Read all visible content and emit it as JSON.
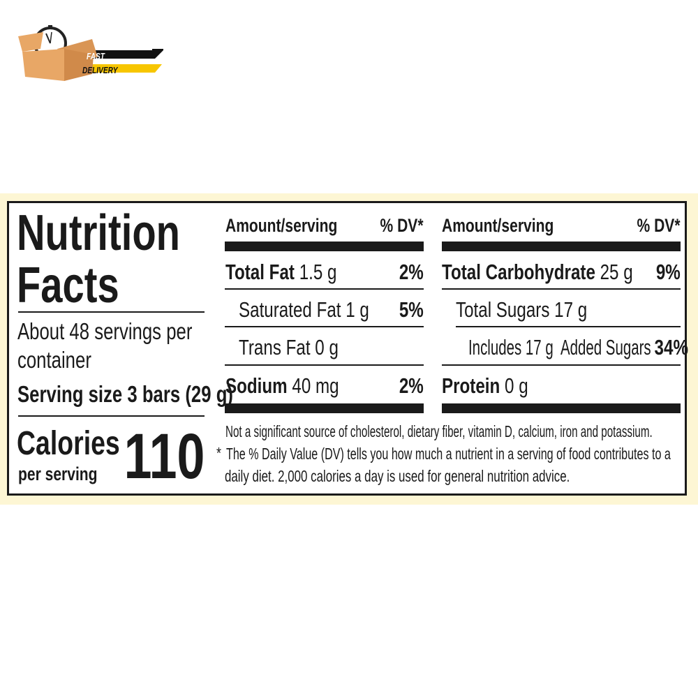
{
  "logo": {
    "line1": "FAST",
    "line2": "DELIVERY",
    "colors": {
      "box": "#e8a766",
      "black_band": "#111111",
      "yellow_band": "#f7c600"
    }
  },
  "label": {
    "title_line1": "Nutrition",
    "title_line2": "Facts",
    "servings_line1": "About 48 servings per",
    "servings_line2": "container",
    "serving_size": "Serving size 3 bars (29 g)",
    "calories_label": "Calories",
    "per_serving": "per serving",
    "calories_value": "110",
    "left_column": {
      "header_amount": "Amount/serving",
      "header_dv": "% DV*",
      "rows": [
        {
          "name": "Total Fat",
          "amount": "1.5 g",
          "dv": "2%"
        },
        {
          "name": "Saturated Fat",
          "amount": "1 g",
          "dv": "5%"
        },
        {
          "name": "Trans Fat",
          "amount": "0 g",
          "dv": ""
        },
        {
          "name": "Sodium",
          "amount": "40 mg",
          "dv": "2%"
        }
      ]
    },
    "right_column": {
      "header_amount": "Amount/serving",
      "header_dv": "% DV*",
      "rows": [
        {
          "name": "Total Carbohydrate",
          "amount": "25 g",
          "dv": "9%"
        },
        {
          "name": "Total Sugars",
          "amount": "17 g",
          "dv": ""
        },
        {
          "name": "Includes 17 g  Added Sugars",
          "amount": "",
          "dv": "34%"
        },
        {
          "name": "Protein",
          "amount": "0 g",
          "dv": ""
        }
      ]
    },
    "footnote_line1": "Not a significant source of cholesterol, dietary fiber, vitamin D, calcium, iron and potassium.",
    "footnote_star": "*",
    "footnote_line2": "The % Daily Value (DV) tells you how much a nutrient in a serving of food contributes to a",
    "footnote_line3": "daily diet. 2,000 calories a day is used for general nutrition advice."
  }
}
